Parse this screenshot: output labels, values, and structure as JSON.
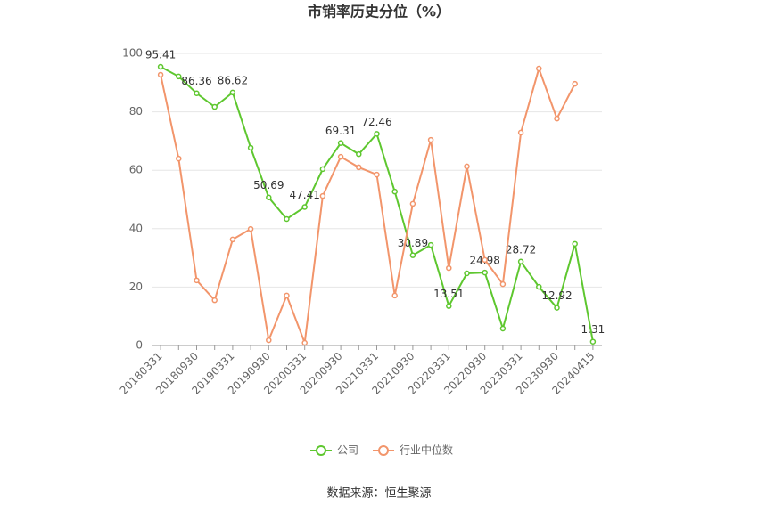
{
  "chart_data": {
    "type": "line",
    "title": "市销率历史分位（%）",
    "categories": [
      "20180331",
      null,
      "20180930",
      null,
      "20190331",
      null,
      "20190930",
      null,
      "20200331",
      null,
      "20200930",
      null,
      "20210331",
      null,
      "20210930",
      null,
      "20220331",
      null,
      "20220930",
      null,
      "20230331",
      null,
      "20230930",
      null,
      "20240415"
    ],
    "series": [
      {
        "name": "公司",
        "color": "#5ec72f",
        "values": [
          95.41,
          92.1,
          86.36,
          81.7,
          86.62,
          67.7,
          50.69,
          43.3,
          47.41,
          60.4,
          69.31,
          65.5,
          72.46,
          52.7,
          30.89,
          34.4,
          13.51,
          24.7,
          24.98,
          5.8,
          28.72,
          20.1,
          12.92,
          34.8,
          1.31
        ],
        "value_labels": [
          "95.41",
          null,
          "86.36",
          null,
          "86.62",
          null,
          "50.69",
          null,
          "47.41",
          null,
          "69.31",
          null,
          "72.46",
          null,
          "30.89",
          null,
          "13.51",
          null,
          "24.98",
          null,
          "28.72",
          null,
          "12.92",
          null,
          "1.31"
        ]
      },
      {
        "name": "行业中位数",
        "color": "#f2956b",
        "values": [
          92.7,
          64.0,
          22.3,
          15.5,
          36.3,
          39.9,
          1.8,
          17.1,
          0.9,
          51.2,
          64.6,
          61.0,
          58.5,
          17.1,
          48.5,
          70.4,
          26.5,
          61.3,
          29.3,
          21.0,
          72.9,
          94.8,
          77.7,
          89.6,
          null
        ]
      }
    ],
    "ylim": [
      0,
      100
    ],
    "yticks": [
      0,
      20,
      40,
      60,
      80,
      100
    ],
    "grid": true,
    "legend": "bottom",
    "source": "数据来源：恒生聚源"
  }
}
